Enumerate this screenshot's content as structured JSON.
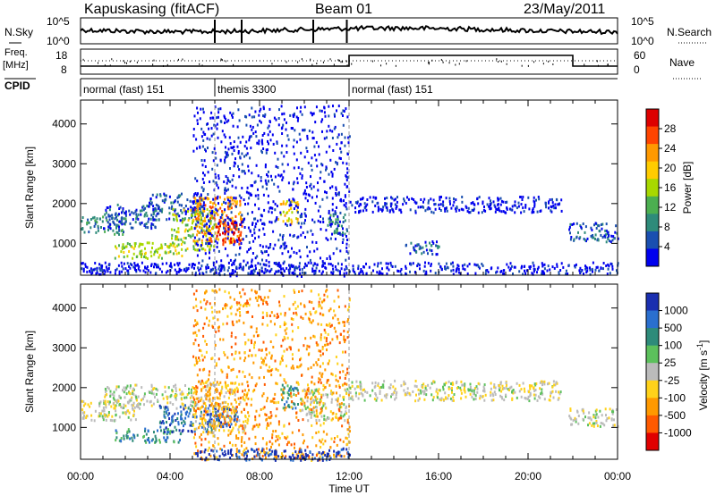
{
  "header": {
    "station": "Kapuskasing (fitACF)",
    "beam": "Beam 01",
    "date": "23/May/2011"
  },
  "noise_panel": {
    "left_label": "N.Sky",
    "right_label": "N.Search",
    "left_ticks": [
      "10^5",
      "10^0"
    ],
    "right_ticks": [
      "10^5",
      "10^0"
    ]
  },
  "freq_panel": {
    "left_label_1": "Freq.",
    "left_label_2": "[MHz]",
    "right_label": "Nave",
    "left_ticks": [
      "18",
      "8"
    ],
    "right_ticks": [
      "60",
      "0"
    ]
  },
  "cpid": {
    "label": "CPID",
    "segments": [
      {
        "label": "normal (fast) 151",
        "start_ut": 0.0,
        "end_ut": 6.0
      },
      {
        "label": "themis 3300",
        "start_ut": 6.0,
        "end_ut": 12.0
      },
      {
        "label": "normal (fast) 151",
        "start_ut": 12.0,
        "end_ut": 24.0
      }
    ]
  },
  "power_colorbar": {
    "title": "Power [dB]",
    "ticks": [
      "28",
      "24",
      "20",
      "16",
      "12",
      "8",
      "4"
    ],
    "colors": [
      "#dd0000",
      "#ff4400",
      "#ff9900",
      "#ffcc00",
      "#a8d800",
      "#4caf50",
      "#2e8b7a",
      "#1a4fb0",
      "#0000ee"
    ]
  },
  "velocity_colorbar": {
    "title": "Velocity [m s",
    "title_sup": "-1",
    "title_end": "]",
    "ticks": [
      "1000",
      "500",
      "100",
      "25",
      "-25",
      "-100",
      "-500",
      "-1000"
    ],
    "colors": [
      "#1a2fb0",
      "#2a6fcf",
      "#2e8b7a",
      "#5cc05c",
      "#bbbbbb",
      "#ffd21a",
      "#ff9900",
      "#ff5a00",
      "#e00000"
    ]
  },
  "chart_data": [
    {
      "type": "heatmap",
      "title": "Power",
      "xlabel": "",
      "ylabel": "Slant Range [km]",
      "xlim": [
        0,
        24
      ],
      "ylim": [
        200,
        4600
      ],
      "yticks": [
        "1000",
        "2000",
        "3000",
        "4000"
      ],
      "xticks": [
        "00:00",
        "04:00",
        "08:00",
        "12:00",
        "16:00",
        "20:00",
        "00:00"
      ],
      "scatter_regions": [
        {
          "t0": 0.0,
          "t1": 2.0,
          "r0": 1250,
          "r1": 1700,
          "level": 2
        },
        {
          "t0": 1.0,
          "t1": 3.5,
          "r0": 1400,
          "r1": 2000,
          "level": 1
        },
        {
          "t0": 3.0,
          "t1": 5.5,
          "r0": 1600,
          "r1": 2300,
          "level": 1
        },
        {
          "t0": 1.5,
          "t1": 4.5,
          "r0": 650,
          "r1": 1050,
          "level": 4
        },
        {
          "t0": 4.0,
          "t1": 6.0,
          "r0": 850,
          "r1": 1900,
          "level": 4
        },
        {
          "t0": 5.0,
          "t1": 7.2,
          "r0": 1000,
          "r1": 2200,
          "level": 6
        },
        {
          "t0": 6.0,
          "t1": 7.2,
          "r0": 1050,
          "r1": 1600,
          "level": 8
        },
        {
          "t0": 8.8,
          "t1": 9.7,
          "r0": 1500,
          "r1": 2100,
          "level": 5
        },
        {
          "t0": 11.0,
          "t1": 11.9,
          "r0": 1250,
          "r1": 1800,
          "level": 2
        },
        {
          "t0": 21.8,
          "t1": 24.0,
          "r0": 1050,
          "r1": 1550,
          "level": 1
        },
        {
          "t0": 12.0,
          "t1": 21.5,
          "r0": 1800,
          "r1": 2200,
          "level": 0
        },
        {
          "t0": 14.5,
          "t1": 16.0,
          "r0": 750,
          "r1": 1100,
          "level": 1
        },
        {
          "t0": 0.0,
          "t1": 24.0,
          "r0": 250,
          "r1": 550,
          "level": 0
        },
        {
          "t0": 5.0,
          "t1": 12.0,
          "r0": 200,
          "r1": 4500,
          "level": 0
        }
      ]
    },
    {
      "type": "heatmap",
      "title": "Velocity",
      "xlabel": "Time UT",
      "ylabel": "Slant Range [km]",
      "xlim": [
        0,
        24
      ],
      "ylim": [
        200,
        4600
      ],
      "yticks": [
        "1000",
        "2000",
        "3000",
        "4000"
      ],
      "xticks": [
        "00:00",
        "04:00",
        "08:00",
        "12:00",
        "16:00",
        "20:00",
        "00:00"
      ],
      "scatter_regions": [
        {
          "t0": 0.0,
          "t1": 2.5,
          "r0": 1200,
          "r1": 1700,
          "level": 4
        },
        {
          "t0": 1.0,
          "t1": 5.0,
          "r0": 1500,
          "r1": 2100,
          "level": 4
        },
        {
          "t0": 1.5,
          "t1": 4.5,
          "r0": 650,
          "r1": 1000,
          "level": 6
        },
        {
          "t0": 3.5,
          "t1": 6.0,
          "r0": 900,
          "r1": 1600,
          "level": 7
        },
        {
          "t0": 5.0,
          "t1": 7.5,
          "r0": 900,
          "r1": 2200,
          "level": 3
        },
        {
          "t0": 6.0,
          "t1": 7.0,
          "r0": 1050,
          "r1": 1500,
          "level": 7
        },
        {
          "t0": 8.8,
          "t1": 9.7,
          "r0": 1500,
          "r1": 2100,
          "level": 6
        },
        {
          "t0": 9.8,
          "t1": 11.9,
          "r0": 1200,
          "r1": 2000,
          "level": 4
        },
        {
          "t0": 12.0,
          "t1": 21.5,
          "r0": 1700,
          "r1": 2200,
          "level": 4
        },
        {
          "t0": 21.8,
          "t1": 24.0,
          "r0": 1050,
          "r1": 1500,
          "level": 4
        },
        {
          "t0": 5.0,
          "t1": 12.0,
          "r0": 200,
          "r1": 4500,
          "level": 2
        },
        {
          "t0": 5.0,
          "t1": 12.0,
          "r0": 200,
          "r1": 500,
          "level": 8
        }
      ]
    }
  ]
}
